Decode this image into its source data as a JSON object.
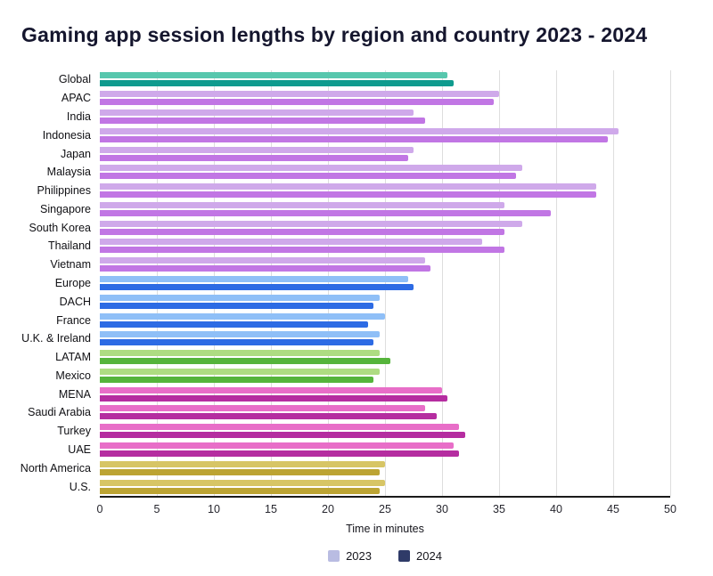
{
  "title": "Gaming app session lengths by region and country 2023 - 2024",
  "chart_data": {
    "type": "bar",
    "orientation": "horizontal",
    "title": "Gaming app session lengths by region and country 2023 - 2024",
    "xlabel": "Time in minutes",
    "ylabel": "",
    "xlim": [
      0,
      50
    ],
    "xticks": [
      0,
      5,
      10,
      15,
      20,
      25,
      30,
      35,
      40,
      45,
      50
    ],
    "grid": "vertical",
    "legend_position": "bottom center",
    "legend": [
      {
        "label": "2023",
        "swatch": "#b9bce2"
      },
      {
        "label": "2024",
        "swatch": "#2f3b68"
      }
    ],
    "categories": [
      "Global",
      "APAC",
      "India",
      "Indonesia",
      "Japan",
      "Malaysia",
      "Philippines",
      "Singapore",
      "South Korea",
      "Thailand",
      "Vietnam",
      "Europe",
      "DACH",
      "France",
      "U.K. & Ireland",
      "LATAM",
      "Mexico",
      "MENA",
      "Saudi Arabia",
      "Turkey",
      "UAE",
      "North America",
      "U.S."
    ],
    "series": [
      {
        "name": "2023",
        "values": [
          30.5,
          35,
          27.5,
          45.5,
          27.5,
          37,
          43.5,
          35.5,
          37,
          33.5,
          28.5,
          27,
          24.5,
          25,
          24.5,
          24.5,
          24.5,
          30,
          28.5,
          31.5,
          31,
          25,
          25
        ]
      },
      {
        "name": "2024",
        "values": [
          31,
          34.5,
          28.5,
          44.5,
          27,
          36.5,
          43.5,
          39.5,
          35.5,
          35.5,
          29,
          27.5,
          24,
          23.5,
          24,
          25.5,
          24,
          30.5,
          29.5,
          32,
          31.5,
          24.5,
          24.5
        ]
      }
    ],
    "colors_2023": [
      "#57C7AD",
      "#CFA9EA",
      "#CFA9EA",
      "#CFA9EA",
      "#CFA9EA",
      "#CFA9EA",
      "#CFA9EA",
      "#CFA9EA",
      "#CFA9EA",
      "#CFA9EA",
      "#CFA9EA",
      "#8FBFF7",
      "#8FBFF7",
      "#8FBFF7",
      "#8FBFF7",
      "#AEDC82",
      "#AEDC82",
      "#E86EC8",
      "#E86EC8",
      "#E86EC8",
      "#E86EC8",
      "#D7C565",
      "#D7C565"
    ],
    "colors_2024": [
      "#0F9B8E",
      "#C176E4",
      "#C176E4",
      "#C176E4",
      "#C176E4",
      "#C176E4",
      "#C176E4",
      "#C176E4",
      "#C176E4",
      "#C176E4",
      "#C176E4",
      "#2D6BE4",
      "#2D6BE4",
      "#2D6BE4",
      "#2D6BE4",
      "#55B43B",
      "#55B43B",
      "#B52DA0",
      "#B52DA0",
      "#B52DA0",
      "#B52DA0",
      "#BCA433",
      "#BCA433"
    ],
    "gridline_color": "#dedede",
    "axis_line_color": "#1a1a1a"
  }
}
